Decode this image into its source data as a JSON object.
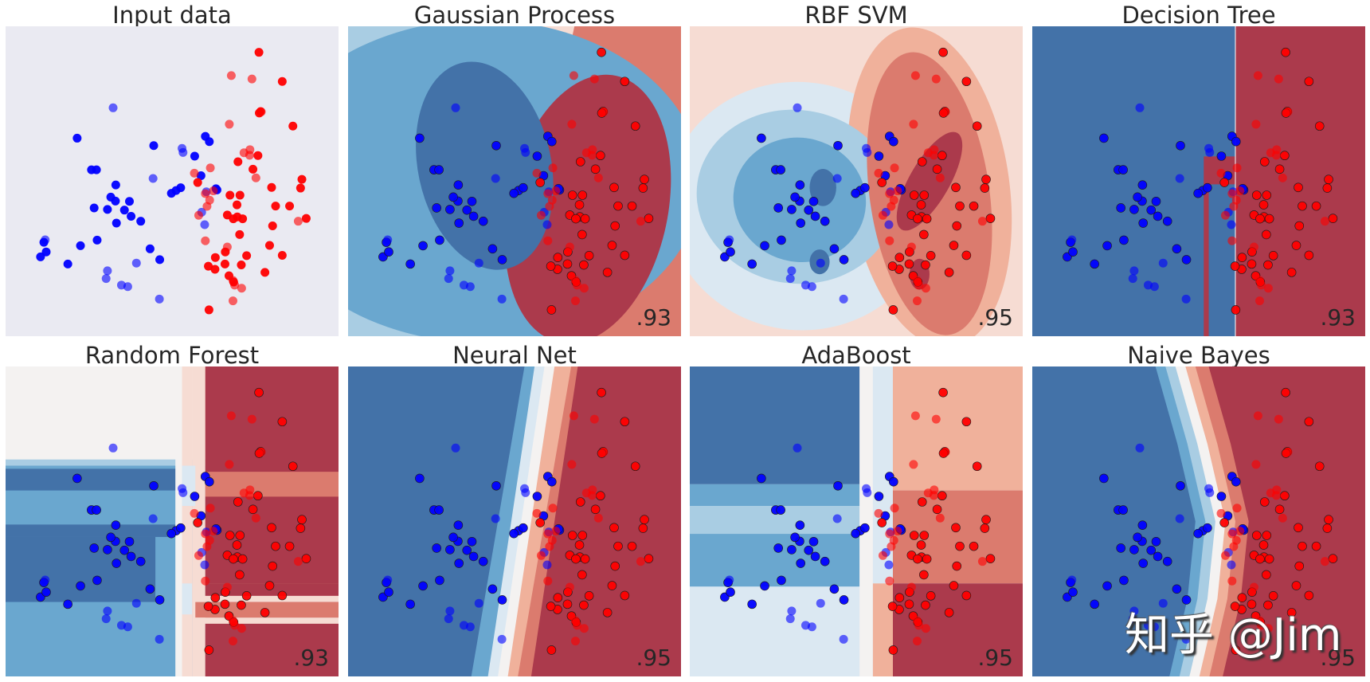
{
  "figure": {
    "watermark": "知乎 @Jim"
  },
  "colors": {
    "input_bg": "#eaeaf2",
    "blue_dark": "#4372a8",
    "blue_mid": "#6aa7cf",
    "blue_light": "#a9cde3",
    "blue_pale": "#dbe8f2",
    "neutral": "#f4f2f1",
    "red_pale": "#f6dcd3",
    "red_light": "#f0b19b",
    "red_mid": "#db7b6e",
    "red_dark": "#ab3a4c",
    "point_blue": "#0000ff",
    "point_red": "#ff0000"
  },
  "chart_data": [
    {
      "type": "scatter",
      "title": "Input data",
      "score": "",
      "xlim": [
        0,
        100
      ],
      "ylim": [
        0,
        100
      ],
      "grid": false
    },
    {
      "type": "scatter",
      "title": "Gaussian Process",
      "score": ".93",
      "xlim": [
        0,
        100
      ],
      "ylim": [
        0,
        100
      ]
    },
    {
      "type": "scatter",
      "title": "RBF SVM",
      "score": ".95",
      "xlim": [
        0,
        100
      ],
      "ylim": [
        0,
        100
      ]
    },
    {
      "type": "scatter",
      "title": "Decision Tree",
      "score": ".93",
      "xlim": [
        0,
        100
      ],
      "ylim": [
        0,
        100
      ]
    },
    {
      "type": "scatter",
      "title": "Random Forest",
      "score": ".93",
      "xlim": [
        0,
        100
      ],
      "ylim": [
        0,
        100
      ]
    },
    {
      "type": "scatter",
      "title": "Neural Net",
      "score": ".95",
      "xlim": [
        0,
        100
      ],
      "ylim": [
        0,
        100
      ]
    },
    {
      "type": "scatter",
      "title": "AdaBoost",
      "score": ".95",
      "xlim": [
        0,
        100
      ],
      "ylim": [
        0,
        100
      ]
    },
    {
      "type": "scatter",
      "title": "Naive Bayes",
      "score": ".95",
      "xlim": [
        0,
        100
      ],
      "ylim": [
        0,
        100
      ]
    }
  ],
  "points": {
    "train": [
      {
        "x": 10.5,
        "y": 25.6,
        "c": 0
      },
      {
        "x": 12.2,
        "y": 27.2,
        "c": 0
      },
      {
        "x": 11.5,
        "y": 30.3,
        "c": 0
      },
      {
        "x": 18.7,
        "y": 23.3,
        "c": 0
      },
      {
        "x": 22.5,
        "y": 29.2,
        "c": 0
      },
      {
        "x": 21.5,
        "y": 63.9,
        "c": 0
      },
      {
        "x": 25.8,
        "y": 53.7,
        "c": 0
      },
      {
        "x": 27.3,
        "y": 53.7,
        "c": 0
      },
      {
        "x": 26.6,
        "y": 41.4,
        "c": 0
      },
      {
        "x": 27.5,
        "y": 31.0,
        "c": 0
      },
      {
        "x": 30.6,
        "y": 40.9,
        "c": 0
      },
      {
        "x": 33.0,
        "y": 43.6,
        "c": 0
      },
      {
        "x": 31.6,
        "y": 44.9,
        "c": 0
      },
      {
        "x": 33.1,
        "y": 48.8,
        "c": 0
      },
      {
        "x": 35.7,
        "y": 40.7,
        "c": 0
      },
      {
        "x": 37.7,
        "y": 38.7,
        "c": 0
      },
      {
        "x": 37.2,
        "y": 43.5,
        "c": 0
      },
      {
        "x": 33.3,
        "y": 36.5,
        "c": 0
      },
      {
        "x": 40.6,
        "y": 37.1,
        "c": 0
      },
      {
        "x": 44.5,
        "y": 61.5,
        "c": 0
      },
      {
        "x": 43.4,
        "y": 28.2,
        "c": 0
      },
      {
        "x": 46.3,
        "y": 24.7,
        "c": 0
      },
      {
        "x": 51.2,
        "y": 47.0,
        "c": 0
      },
      {
        "x": 52.6,
        "y": 47.9,
        "c": 0
      },
      {
        "x": 49.8,
        "y": 46.1,
        "c": 0
      },
      {
        "x": 56.8,
        "y": 58.1,
        "c": 0
      },
      {
        "x": 60.0,
        "y": 64.5,
        "c": 0
      },
      {
        "x": 61.2,
        "y": 62.8,
        "c": 0
      },
      {
        "x": 63.5,
        "y": 47.2,
        "c": 0
      },
      {
        "x": 63.2,
        "y": 47.6,
        "c": 0
      },
      {
        "x": 58.7,
        "y": 51.8,
        "c": 0
      },
      {
        "x": 57.7,
        "y": 49.6,
        "c": 1
      },
      {
        "x": 63.0,
        "y": 25.4,
        "c": 1
      },
      {
        "x": 61.1,
        "y": 8.5,
        "c": 1
      },
      {
        "x": 62.9,
        "y": 21.6,
        "c": 1
      },
      {
        "x": 60.9,
        "y": 22.6,
        "c": 1
      },
      {
        "x": 67.4,
        "y": 45.5,
        "c": 1
      },
      {
        "x": 69.5,
        "y": 42.4,
        "c": 1
      },
      {
        "x": 70.4,
        "y": 45.5,
        "c": 1
      },
      {
        "x": 66.6,
        "y": 39.1,
        "c": 1
      },
      {
        "x": 69.6,
        "y": 38.5,
        "c": 1
      },
      {
        "x": 71.2,
        "y": 37.9,
        "c": 1
      },
      {
        "x": 70.3,
        "y": 32.8,
        "c": 1
      },
      {
        "x": 68.4,
        "y": 37.9,
        "c": 1
      },
      {
        "x": 69.8,
        "y": 56.3,
        "c": 1
      },
      {
        "x": 66.0,
        "y": 27.2,
        "c": 1
      },
      {
        "x": 65.9,
        "y": 23.3,
        "c": 1
      },
      {
        "x": 67.1,
        "y": 19.5,
        "c": 1
      },
      {
        "x": 68.5,
        "y": 17.5,
        "c": 1
      },
      {
        "x": 70.8,
        "y": 23.0,
        "c": 1
      },
      {
        "x": 76.1,
        "y": 91.6,
        "c": 1
      },
      {
        "x": 76.6,
        "y": 72.5,
        "c": 1
      },
      {
        "x": 76.2,
        "y": 72.0,
        "c": 1
      },
      {
        "x": 74.3,
        "y": 53.9,
        "c": 1
      },
      {
        "x": 75.8,
        "y": 58.3,
        "c": 1
      },
      {
        "x": 83.1,
        "y": 26.1,
        "c": 1
      },
      {
        "x": 85.3,
        "y": 42.0,
        "c": 1
      },
      {
        "x": 86.3,
        "y": 67.8,
        "c": 1
      },
      {
        "x": 89.0,
        "y": 50.6,
        "c": 1
      },
      {
        "x": 90.3,
        "y": 38.0,
        "c": 1
      },
      {
        "x": 88.6,
        "y": 47.8,
        "c": 1
      },
      {
        "x": 83.1,
        "y": 82.2,
        "c": 1
      },
      {
        "x": 81.1,
        "y": 42.0,
        "c": 1
      },
      {
        "x": 79.9,
        "y": 48.0,
        "c": 1
      },
      {
        "x": 80.2,
        "y": 35.6,
        "c": 1
      },
      {
        "x": 79.3,
        "y": 29.3,
        "c": 1
      },
      {
        "x": 77.9,
        "y": 20.6,
        "c": 1
      },
      {
        "x": 72.4,
        "y": 26.0,
        "c": 1
      }
    ],
    "test": [
      {
        "x": 32.3,
        "y": 73.7,
        "c": 0
      },
      {
        "x": 11.9,
        "y": 31.1,
        "c": 0
      },
      {
        "x": 30.6,
        "y": 21.1,
        "c": 0
      },
      {
        "x": 30.2,
        "y": 18.6,
        "c": 0
      },
      {
        "x": 34.8,
        "y": 16.5,
        "c": 0
      },
      {
        "x": 36.7,
        "y": 16.0,
        "c": 0
      },
      {
        "x": 39.3,
        "y": 23.6,
        "c": 0
      },
      {
        "x": 44.3,
        "y": 50.9,
        "c": 0
      },
      {
        "x": 46.2,
        "y": 12.0,
        "c": 0
      },
      {
        "x": 53.3,
        "y": 59.3,
        "c": 0
      },
      {
        "x": 58.9,
        "y": 40.0,
        "c": 0
      },
      {
        "x": 59.8,
        "y": 36.0,
        "c": 0
      },
      {
        "x": 60.3,
        "y": 46.6,
        "c": 0
      },
      {
        "x": 53.0,
        "y": 60.6,
        "c": 0
      },
      {
        "x": 67.8,
        "y": 84.1,
        "c": 1
      },
      {
        "x": 67.2,
        "y": 68.4,
        "c": 1
      },
      {
        "x": 60.5,
        "y": 41.9,
        "c": 1
      },
      {
        "x": 68.8,
        "y": 16.5,
        "c": 1
      },
      {
        "x": 74.0,
        "y": 83.0,
        "c": 1
      },
      {
        "x": 73.3,
        "y": 58.4,
        "c": 1
      },
      {
        "x": 61.5,
        "y": 54.3,
        "c": 1
      },
      {
        "x": 60.0,
        "y": 46.0,
        "c": 1
      },
      {
        "x": 56.7,
        "y": 52.6,
        "c": 1
      },
      {
        "x": 58.0,
        "y": 39.0,
        "c": 1
      },
      {
        "x": 60.0,
        "y": 30.8,
        "c": 1
      },
      {
        "x": 66.6,
        "y": 28.8,
        "c": 1
      },
      {
        "x": 68.3,
        "y": 18.0,
        "c": 1
      },
      {
        "x": 70.9,
        "y": 15.5,
        "c": 1
      },
      {
        "x": 71.6,
        "y": 59.2,
        "c": 1
      },
      {
        "x": 73.4,
        "y": 60.2,
        "c": 1
      },
      {
        "x": 75.2,
        "y": 51.1,
        "c": 1
      },
      {
        "x": 87.9,
        "y": 37.1,
        "c": 1
      },
      {
        "x": 62.4,
        "y": 46.9,
        "c": 1
      },
      {
        "x": 61.3,
        "y": 43.9,
        "c": 1
      },
      {
        "x": 68.3,
        "y": 11.4,
        "c": 1
      },
      {
        "x": 76.8,
        "y": 72.4,
        "c": 1
      }
    ]
  }
}
